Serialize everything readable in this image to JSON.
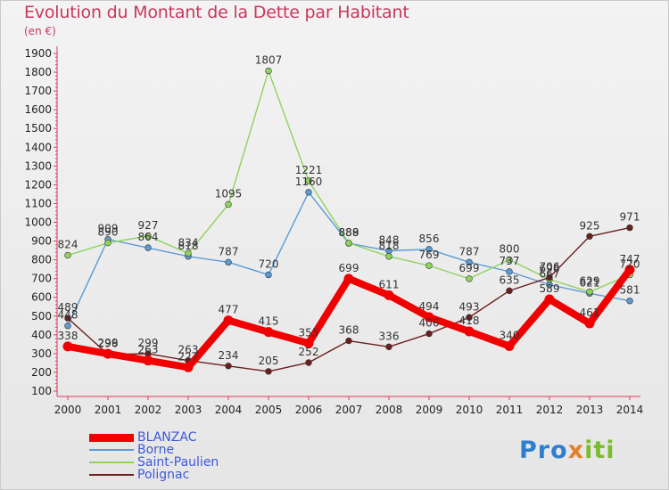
{
  "header": {
    "title": "Evolution du Montant de la Dette par Habitant",
    "unit": "(en €)"
  },
  "logo": {
    "parts": [
      "Pro",
      "x",
      "iti"
    ]
  },
  "chart_data": {
    "type": "line",
    "title": "Evolution du Montant de la Dette par Habitant",
    "ylabel": "(en €)",
    "xlabel": "",
    "x": [
      "2000",
      "2001",
      "2002",
      "2003",
      "2004",
      "2005",
      "2006",
      "2007",
      "2008",
      "2009",
      "2010",
      "2011",
      "2012",
      "2013",
      "2014"
    ],
    "ylim": [
      100,
      1900
    ],
    "yticks": [
      100,
      200,
      300,
      400,
      500,
      600,
      700,
      800,
      900,
      1000,
      1100,
      1200,
      1300,
      1400,
      1500,
      1600,
      1700,
      1800,
      1900
    ],
    "grid": false,
    "legend_position": "bottom-left",
    "series": [
      {
        "name": "BLANZAC",
        "color": "#f00000",
        "values": [
          338,
          299,
          263,
          227,
          477,
          415,
          355,
          699,
          611,
          494,
          418,
          340,
          589,
          461,
          747
        ]
      },
      {
        "name": "Borne",
        "color": "#5b9bd5",
        "values": [
          448,
          909,
          864,
          818,
          787,
          720,
          1160,
          888,
          848,
          856,
          787,
          737,
          667,
          621,
          581
        ]
      },
      {
        "name": "Saint-Paulien",
        "color": "#8fd35d",
        "values": [
          824,
          890,
          927,
          834,
          1095,
          1807,
          1221,
          889,
          818,
          769,
          699,
          800,
          696,
          629,
          720
        ]
      },
      {
        "name": "Polignac",
        "color": "#6b1f1f",
        "values": [
          489,
          296,
          299,
          263,
          234,
          205,
          252,
          368,
          336,
          406,
          493,
          635,
          706,
          925,
          971
        ]
      }
    ]
  }
}
